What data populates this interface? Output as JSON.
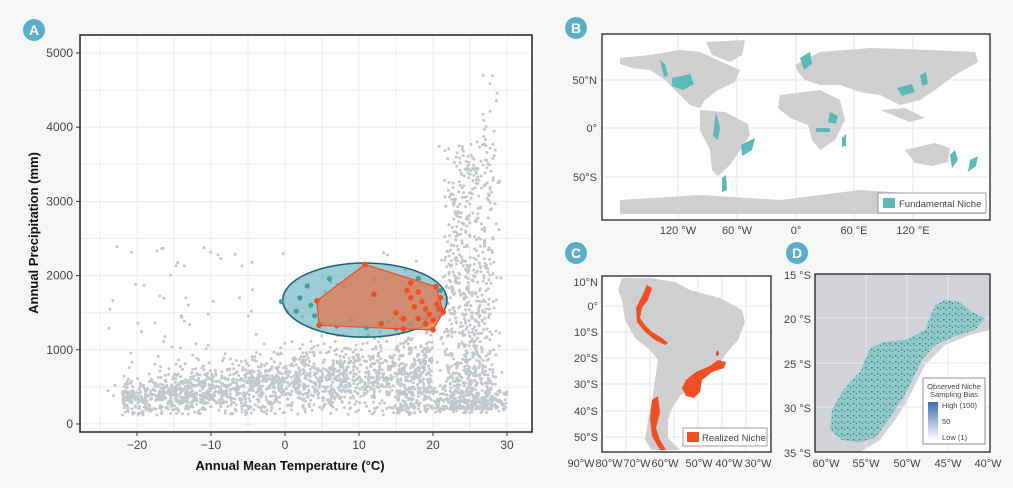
{
  "panel_labels": [
    "A",
    "B",
    "C",
    "D"
  ],
  "colors": {
    "background_points": "#c3c7cc",
    "fundamental_niche": "#5bbab8",
    "ellipse_fill": "#4aa3b0",
    "ellipse_stroke": "#1f5f7a",
    "realized_niche": "#f04e23",
    "hull_fill": "#d9805f",
    "land": "#cfcfcf",
    "panel_label": "#5aaecb",
    "bias_high": "#3a6fae"
  },
  "chart_data": [
    {
      "panel": "A",
      "type": "scatter",
      "xlabel": "Annual Mean Temperature (°C)",
      "ylabel": "Annual Precipitation (mm)",
      "xlim": [
        -27,
        33
      ],
      "ylim": [
        -100,
        5250
      ],
      "xticks": [
        -20,
        -10,
        0,
        10,
        20,
        30
      ],
      "xtick_labels": [
        "−20",
        "−10",
        "0",
        "10",
        "20",
        "30"
      ],
      "yticks": [
        0,
        1000,
        2000,
        3000,
        4000,
        5000
      ],
      "ytick_labels": [
        "0",
        "1000",
        "2000",
        "3000",
        "4000",
        "5000"
      ],
      "grid": true,
      "background_cloud": {
        "description": "Global occurrence points (grey); dense band rising from ~300 mm at -20 °C to ~700 mm at 15 °C, then a vertical spike at ~25–27 °C reaching ~5000 mm",
        "n_points": 3000
      },
      "fundamental_niche_ellipse": {
        "center": [
          10.8,
          1670
        ],
        "radius_x": 11.1,
        "radius_y": 500
      },
      "realized_niche_hull": [
        [
          10.8,
          2150
        ],
        [
          20.4,
          1850
        ],
        [
          21.4,
          1510
        ],
        [
          20.0,
          1270
        ],
        [
          16.0,
          1280
        ],
        [
          4.6,
          1330
        ],
        [
          4.3,
          1660
        ]
      ],
      "fundamental_points": [
        [
          1.5,
          1520
        ],
        [
          3,
          1860
        ],
        [
          4,
          1460
        ],
        [
          6,
          1960
        ],
        [
          2,
          1700
        ],
        [
          8,
          1850
        ],
        [
          9,
          1400
        ],
        [
          12,
          1950
        ],
        [
          14,
          1380
        ],
        [
          17,
          1340
        ],
        [
          19,
          1420
        ],
        [
          3.5,
          1600
        ],
        [
          5,
          1350
        ],
        [
          7,
          1320
        ],
        [
          11,
          1300
        ],
        [
          15,
          1290
        ],
        [
          21,
          1800
        ],
        [
          -0.5,
          1650
        ],
        [
          18,
          1960
        ]
      ],
      "realized_points": [
        [
          10.8,
          2150
        ],
        [
          20.4,
          1850
        ],
        [
          21.4,
          1510
        ],
        [
          20.0,
          1270
        ],
        [
          16.0,
          1280
        ],
        [
          4.6,
          1330
        ],
        [
          4.3,
          1660
        ],
        [
          12,
          1750
        ],
        [
          17,
          1900
        ],
        [
          18,
          1780
        ],
        [
          18.5,
          1650
        ],
        [
          19,
          1550
        ],
        [
          19.5,
          1480
        ],
        [
          20.5,
          1620
        ],
        [
          21,
          1700
        ],
        [
          17.5,
          1580
        ],
        [
          16,
          1420
        ],
        [
          18,
          1420
        ],
        [
          20,
          1400
        ],
        [
          13,
          1350
        ],
        [
          15,
          1500
        ],
        [
          19,
          1350
        ],
        [
          17,
          1700
        ],
        [
          20.8,
          1550
        ],
        [
          16.5,
          1800
        ]
      ]
    }
  ],
  "panel_b": {
    "title": "Fundamental niche global map",
    "x_ticks": [
      "120 °W",
      "60 °W",
      "0°",
      "60 °E",
      "120 °E"
    ],
    "y_ticks": [
      "50°N",
      "0°",
      "50°S"
    ],
    "legend": "Fundamental Niche"
  },
  "panel_c": {
    "x_ticks": [
      "90°W",
      "80°W",
      "70°W",
      "60°W",
      "50°W",
      "40°W",
      "30°W"
    ],
    "y_ticks": [
      "10°N",
      "0°",
      "10°S",
      "20°S",
      "30°S",
      "40°S",
      "50°S"
    ],
    "legend": "Realized Niche"
  },
  "panel_d": {
    "x_ticks": [
      "60°W",
      "55°W",
      "50°W",
      "45°W",
      "40°W"
    ],
    "y_ticks": [
      "15 °S",
      "20 °S",
      "25 °S",
      "30 °S",
      "35 °S"
    ],
    "legend_title_1": "Observed Niche",
    "legend_title_2": "Sampling Bias",
    "legend_high": "High (100)",
    "legend_mid": "50",
    "legend_low": "Low (1)"
  }
}
